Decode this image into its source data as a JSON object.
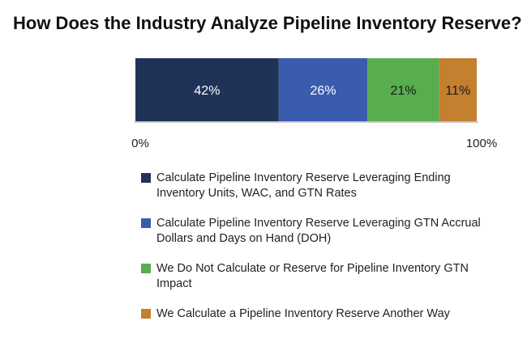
{
  "title": "How Does the Industry Analyze Pipeline Inventory Reserve?",
  "chart_data": {
    "type": "bar",
    "orientation": "horizontal-stacked",
    "title": "How Does the Industry Analyze Pipeline Inventory Reserve?",
    "xlim": [
      0,
      100
    ],
    "x_ticks": [
      "0%",
      "100%"
    ],
    "legend_position": "bottom",
    "series": [
      {
        "name": "Calculate Pipeline Inventory Reserve Leveraging Ending Inventory Units, WAC, and GTN Rates",
        "value": 42,
        "label": "42%",
        "color": "#1f3358",
        "label_color": "#ffffff"
      },
      {
        "name": "Calculate Pipeline Inventory Reserve Leveraging GTN Accrual Dollars and Days on Hand (DOH)",
        "value": 26,
        "label": "26%",
        "color": "#3a5cad",
        "label_color": "#ffffff"
      },
      {
        "name": "We Do Not Calculate or Reserve for Pipeline Inventory GTN Impact",
        "value": 21,
        "label": "21%",
        "color": "#58ad4f",
        "label_color": "#1a1a1a"
      },
      {
        "name": "We Calculate a Pipeline Inventory Reserve Another Way",
        "value": 11,
        "label": "11%",
        "color": "#c47f2f",
        "label_color": "#1a1a1a"
      }
    ]
  }
}
